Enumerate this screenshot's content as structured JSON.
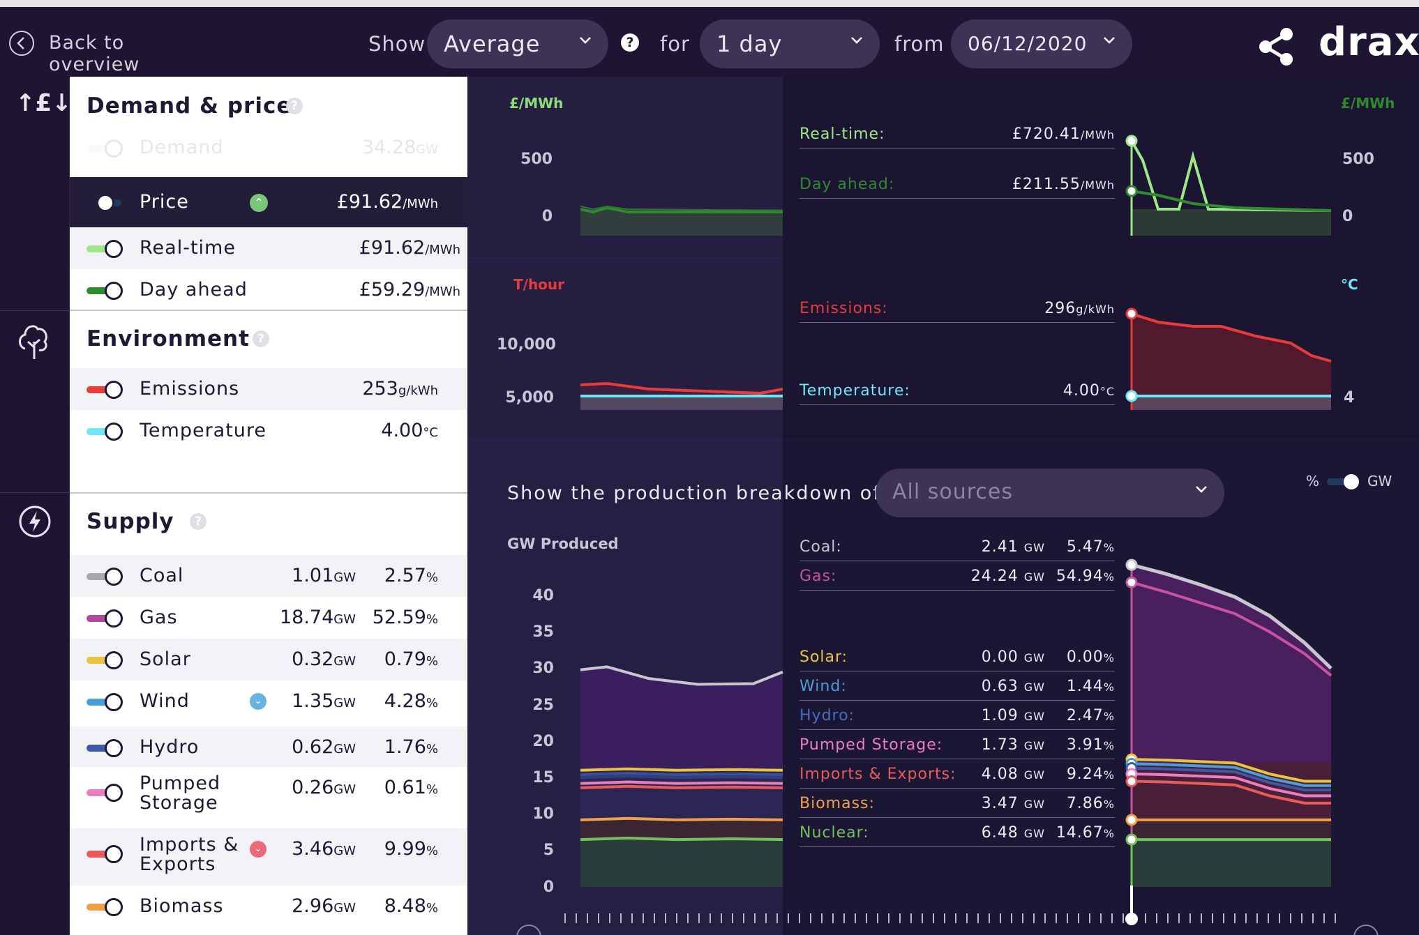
{
  "topbar": {
    "back_label": "Back to overview",
    "show_label": "Show",
    "show_value": "Average",
    "for_label": "for",
    "period_value": "1 day",
    "from_label": "from",
    "date_value": "06/12/2020",
    "brand": "drax"
  },
  "demand": {
    "title": "Demand & price",
    "rows": [
      {
        "name": "Demand",
        "value": "34.28",
        "unit": "GW",
        "color": "#e9e9ee"
      },
      {
        "name": "Price",
        "value": "£91.62",
        "unit": "/MWh",
        "color": "#1e3a5c"
      },
      {
        "name": "Real-time",
        "value": "£91.62",
        "unit": "/MWh",
        "color": "#9fe689"
      },
      {
        "name": "Day ahead",
        "value": "£59.29",
        "unit": "/MWh",
        "color": "#2f8a2f"
      }
    ]
  },
  "environment": {
    "title": "Environment",
    "rows": [
      {
        "name": "Emissions",
        "value": "253",
        "unit": "g/kWh",
        "color": "#e63c3c"
      },
      {
        "name": "Temperature",
        "value": "4.00",
        "unit": "°C",
        "color": "#6ee6f4"
      }
    ]
  },
  "supply": {
    "title": "Supply",
    "rows": [
      {
        "name": "Coal",
        "gw": "1.01",
        "pct": "2.57",
        "color": "#a8a8ae"
      },
      {
        "name": "Gas",
        "gw": "18.74",
        "pct": "52.59",
        "color": "#b2479c"
      },
      {
        "name": "Solar",
        "gw": "0.32",
        "pct": "0.79",
        "color": "#e9c440"
      },
      {
        "name": "Wind",
        "gw": "1.35",
        "pct": "4.28",
        "color": "#4b9fd8"
      },
      {
        "name": "Hydro",
        "gw": "0.62",
        "pct": "1.76",
        "color": "#3d58a8"
      },
      {
        "name": "Pumped Storage",
        "name1": "Pumped",
        "name2": "Storage",
        "gw": "0.26",
        "pct": "0.61",
        "color": "#e97fc0"
      },
      {
        "name": "Imports & Exports",
        "name1": "Imports &",
        "name2": "Exports",
        "gw": "3.46",
        "pct": "9.99",
        "color": "#ea5a5a"
      },
      {
        "name": "Biomass",
        "gw": "2.96",
        "pct": "8.48",
        "color": "#efa048"
      }
    ],
    "gw_unit": "GW",
    "pct_unit": "%"
  },
  "price_chart": {
    "left_unit": "£/MWh",
    "right_unit": "£/MWh",
    "ticks": [
      "500",
      "0"
    ],
    "tooltip": [
      {
        "label": "Real-time:",
        "value": "£720.41",
        "unit": "/MWh",
        "color": "#9fe689"
      },
      {
        "label": "Day ahead:",
        "value": "£211.55",
        "unit": "/MWh",
        "color": "#2f8a2f"
      }
    ]
  },
  "env_chart": {
    "left_unit": "T/hour",
    "right_unit": "°C",
    "ticks": [
      "10,000",
      "5,000"
    ],
    "right_tick": "4",
    "tooltip": [
      {
        "label": "Emissions:",
        "value": "296",
        "unit": "g/kWh",
        "color": "#e63c3c"
      },
      {
        "label": "Temperature:",
        "value": "4.00",
        "unit": "°C",
        "color": "#6ee6f4"
      }
    ]
  },
  "production": {
    "breakdown_label": "Show the production breakdown of",
    "source_value": "All sources",
    "pct_label": "%",
    "gw_label": "GW",
    "y_title": "GW Produced",
    "ticks": [
      "40",
      "35",
      "30",
      "25",
      "20",
      "15",
      "10",
      "5",
      "0"
    ],
    "tooltip": [
      {
        "label": "Coal:",
        "gw": "2.41",
        "pct": "5.47",
        "color": "#c9c6d1"
      },
      {
        "label": "Gas:",
        "gw": "24.24",
        "pct": "54.94",
        "color": "#c7529f"
      },
      {
        "label": "Solar:",
        "gw": "0.00",
        "pct": "0.00",
        "color": "#e9c440"
      },
      {
        "label": "Wind:",
        "gw": "0.63",
        "pct": "1.44",
        "color": "#4b9fd8"
      },
      {
        "label": "Hydro:",
        "gw": "1.09",
        "pct": "2.47",
        "color": "#4d6cc0"
      },
      {
        "label": "Pumped Storage:",
        "gw": "1.73",
        "pct": "3.91",
        "color": "#e97fc0"
      },
      {
        "label": "Imports & Exports:",
        "gw": "4.08",
        "pct": "9.24",
        "color": "#ea5a5a"
      },
      {
        "label": "Biomass:",
        "gw": "3.47",
        "pct": "7.86",
        "color": "#efa048"
      },
      {
        "label": "Nuclear:",
        "gw": "6.48",
        "pct": "14.67",
        "color": "#74c05b"
      }
    ],
    "unit_gw": "GW",
    "unit_pct": "%"
  }
}
